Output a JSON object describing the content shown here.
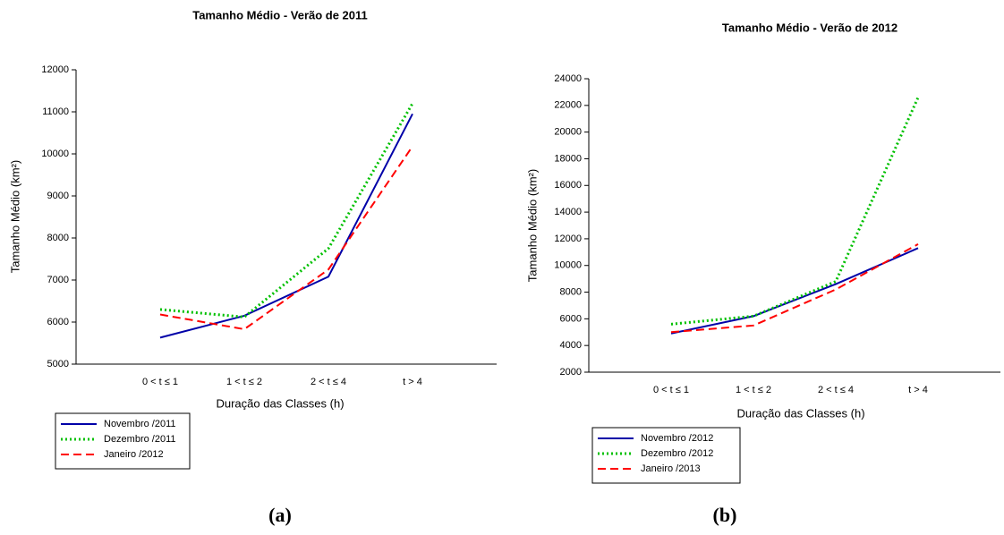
{
  "chart_data": [
    {
      "type": "line",
      "title": "Tamanho Médio - Verão de 2011",
      "caption": "(a)",
      "x_label": "Duração das Classes (h)",
      "y_label": "Tamanho Médio (km²)",
      "categories": [
        "0 < t ≤ 1",
        "1 < t ≤ 2",
        "2 < t ≤ 4",
        "t > 4"
      ],
      "ylim": [
        5000,
        12000
      ],
      "yticks": [
        5000,
        6000,
        7000,
        8000,
        9000,
        10000,
        11000,
        12000
      ],
      "series": [
        {
          "name": "Novembro /2011",
          "color": "#0000a8",
          "dash": "solid",
          "values": [
            5630,
            6150,
            7080,
            10950
          ]
        },
        {
          "name": "Dezembro /2011",
          "color": "#00c000",
          "dash": "dotted",
          "values": [
            6300,
            6120,
            7750,
            11200
          ]
        },
        {
          "name": "Janeiro /2012",
          "color": "#ff0000",
          "dash": "dashed",
          "values": [
            6180,
            5830,
            7250,
            10180
          ]
        }
      ]
    },
    {
      "type": "line",
      "title": "Tamanho Médio - Verão de 2012",
      "caption": "(b)",
      "x_label": "Duração das Classes (h)",
      "y_label": "Tamanho Médio (km²)",
      "categories": [
        "0 < t ≤ 1",
        "1 < t ≤ 2",
        "2 < t ≤ 4",
        "t > 4"
      ],
      "ylim": [
        2000,
        24000
      ],
      "yticks": [
        2000,
        4000,
        6000,
        8000,
        10000,
        12000,
        14000,
        16000,
        18000,
        20000,
        22000,
        24000
      ],
      "series": [
        {
          "name": "Novembro /2012",
          "color": "#0000a8",
          "dash": "solid",
          "values": [
            4900,
            6200,
            8600,
            11300
          ]
        },
        {
          "name": "Dezembro /2012",
          "color": "#00c000",
          "dash": "dotted",
          "values": [
            5600,
            6200,
            8800,
            22600
          ]
        },
        {
          "name": "Janeiro /2013",
          "color": "#ff0000",
          "dash": "dashed",
          "values": [
            5000,
            5500,
            8200,
            11600
          ]
        }
      ]
    }
  ]
}
